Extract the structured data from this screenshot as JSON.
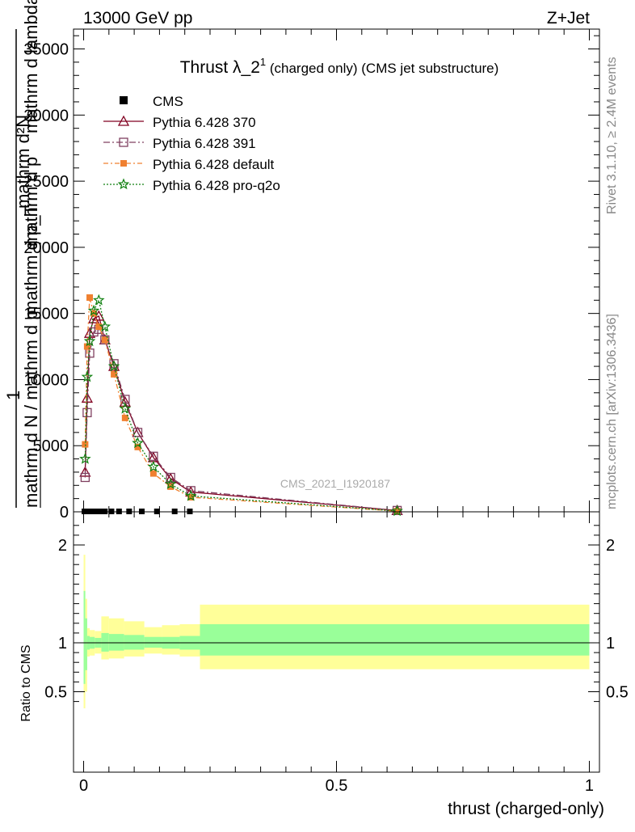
{
  "header": {
    "left": "13000 GeV pp",
    "right": "Z+Jet"
  },
  "side": {
    "rivet": "Rivet 3.1.10, ≥ 2.4M events",
    "mcplots": "mcplots.cern.ch [arXiv:1306.3436]"
  },
  "chart_data": [
    {
      "type": "line",
      "title_main": "Thrust λ_2",
      "title_sup": "1",
      "title_rest": " (charged only) (CMS jet substructure)",
      "watermark": "CMS_2021_I1920187",
      "ylabel_overlapped": [
        "mathrm d²N",
        "mathrm d p",
        "mathrm d lambda",
        "1",
        "mathrm d N / mathrm d p",
        "mathrm d p_T"
      ],
      "ylim": [
        0,
        36500
      ],
      "yticks": [
        0,
        5000,
        10000,
        15000,
        20000,
        25000,
        30000,
        35000
      ],
      "ytick_labels": [
        "0",
        "5000",
        "10000",
        "15000",
        "20000",
        "25000",
        "30000",
        "35000"
      ],
      "xlim": [
        -0.02,
        1.02
      ],
      "legend_position": "top-left",
      "reference": {
        "name": "CMS",
        "color": "#000000",
        "x": [
          0.0017,
          0.005,
          0.009,
          0.013,
          0.018,
          0.025,
          0.033,
          0.042,
          0.055,
          0.07,
          0.09,
          0.115,
          0.145,
          0.18,
          0.21
        ]
      },
      "series": [
        {
          "name": "Pythia 6.428 370",
          "color": "#800020",
          "dash": "",
          "marker": "triangle",
          "x": [
            0.003,
            0.007,
            0.012,
            0.02,
            0.03,
            0.042,
            0.06,
            0.082,
            0.107,
            0.138,
            0.172,
            0.212,
            0.62
          ],
          "y": [
            3000,
            8600,
            13500,
            14600,
            14800,
            13000,
            11000,
            8300,
            6000,
            4100,
            2500,
            1500,
            100
          ]
        },
        {
          "name": "Pythia 6.428 391",
          "color": "#804060",
          "dash": "8,3,2,3",
          "marker": "square",
          "x": [
            0.003,
            0.007,
            0.012,
            0.02,
            0.03,
            0.042,
            0.06,
            0.082,
            0.107,
            0.138,
            0.172,
            0.212,
            0.62
          ],
          "y": [
            2600,
            7500,
            12000,
            13600,
            13800,
            13000,
            11200,
            8500,
            6000,
            4200,
            2600,
            1600,
            100
          ]
        },
        {
          "name": "Pythia 6.428 default",
          "color": "#f08030",
          "dash": "6,3,2,3",
          "marker": "filled-square",
          "x": [
            0.003,
            0.007,
            0.012,
            0.02,
            0.03,
            0.042,
            0.06,
            0.082,
            0.107,
            0.138,
            0.172,
            0.212,
            0.62
          ],
          "y": [
            5100,
            12500,
            16200,
            15000,
            14000,
            13000,
            10400,
            7100,
            4900,
            2900,
            1900,
            1100,
            50
          ]
        },
        {
          "name": "Pythia 6.428 pro-q2o",
          "color": "#108010",
          "dash": "2,2",
          "marker": "star",
          "x": [
            0.003,
            0.007,
            0.012,
            0.02,
            0.03,
            0.042,
            0.06,
            0.082,
            0.107,
            0.138,
            0.172,
            0.212,
            0.62
          ],
          "y": [
            4000,
            10200,
            12900,
            15200,
            16000,
            14000,
            11000,
            7800,
            5200,
            3400,
            2100,
            1200,
            60
          ]
        }
      ]
    },
    {
      "type": "area",
      "ylabel": "Ratio to CMS",
      "ylim": [
        0.35,
        2.25
      ],
      "yticks": [
        0.5,
        1,
        2
      ],
      "ytick_labels": [
        "0.5",
        "1",
        "2"
      ],
      "xlim": [
        -0.02,
        1.02
      ],
      "xticks": [
        0,
        0.5,
        1
      ],
      "xtick_labels": [
        "0",
        "0.5",
        "1"
      ],
      "xlabel": "thrust (charged-only)",
      "colors": {
        "yellow_band": "#ffff99",
        "green_band": "#99ff99"
      },
      "bands": [
        {
          "x0": 0.0,
          "x1": 0.0033,
          "y_lo": 0.33,
          "y_hi": 1.9,
          "g_lo": 0.58,
          "g_hi": 1.53
        },
        {
          "x0": 0.0033,
          "x1": 0.007,
          "y_lo": 0.5,
          "y_hi": 1.45,
          "g_lo": 0.72,
          "g_hi": 1.25
        },
        {
          "x0": 0.007,
          "x1": 0.012,
          "y_lo": 0.86,
          "y_hi": 1.15,
          "g_lo": 0.93,
          "g_hi": 1.07
        },
        {
          "x0": 0.012,
          "x1": 0.022,
          "y_lo": 0.87,
          "y_hi": 1.13,
          "g_lo": 0.94,
          "g_hi": 1.06
        },
        {
          "x0": 0.022,
          "x1": 0.035,
          "y_lo": 0.89,
          "y_hi": 1.12,
          "g_lo": 0.95,
          "g_hi": 1.05
        },
        {
          "x0": 0.035,
          "x1": 0.05,
          "y_lo": 0.83,
          "y_hi": 1.27,
          "g_lo": 0.91,
          "g_hi": 1.1
        },
        {
          "x0": 0.05,
          "x1": 0.08,
          "y_lo": 0.84,
          "y_hi": 1.25,
          "g_lo": 0.92,
          "g_hi": 1.09
        },
        {
          "x0": 0.08,
          "x1": 0.12,
          "y_lo": 0.86,
          "y_hi": 1.22,
          "g_lo": 0.93,
          "g_hi": 1.08
        },
        {
          "x0": 0.12,
          "x1": 0.155,
          "y_lo": 0.89,
          "y_hi": 1.16,
          "g_lo": 0.95,
          "g_hi": 1.06
        },
        {
          "x0": 0.155,
          "x1": 0.19,
          "y_lo": 0.88,
          "y_hi": 1.18,
          "g_lo": 0.94,
          "g_hi": 1.06
        },
        {
          "x0": 0.19,
          "x1": 0.23,
          "y_lo": 0.86,
          "y_hi": 1.19,
          "g_lo": 0.93,
          "g_hi": 1.07
        },
        {
          "x0": 0.23,
          "x1": 1.0,
          "y_lo": 0.73,
          "y_hi": 1.39,
          "g_lo": 0.87,
          "g_hi": 1.19
        }
      ]
    }
  ]
}
